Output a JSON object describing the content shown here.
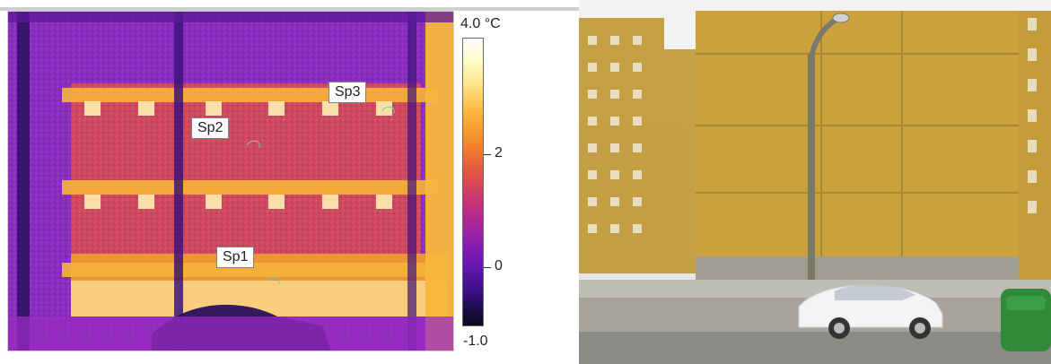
{
  "thermal": {
    "spots": [
      {
        "label": "Sp1"
      },
      {
        "label": "Sp2"
      },
      {
        "label": "Sp3"
      }
    ],
    "scale": {
      "max_label": "4.0 °C",
      "mid_label": "2",
      "zero_label": "0",
      "min_label": "-1.0"
    }
  },
  "colors": {
    "thermal_base": "#7a1fb0",
    "thermal_warm": "#f39a2c",
    "thermal_hot": "#fff2a6",
    "building_yellow": "#c7a23c",
    "car_white": "#f3f3f3",
    "bin_green": "#2f8a3a"
  },
  "photo": {
    "subject": "apartment-building-with-white-car"
  }
}
